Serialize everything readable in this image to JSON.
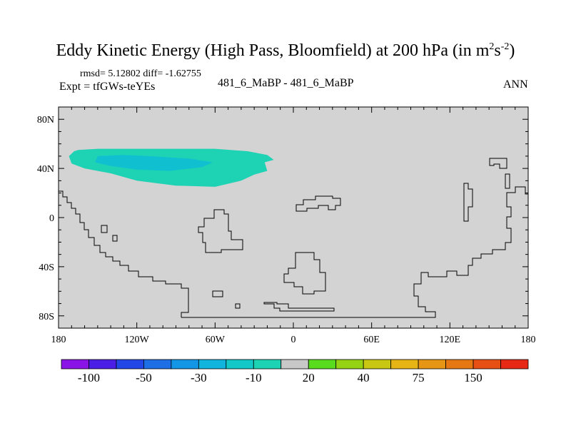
{
  "title": {
    "main": "Eddy Kinetic Energy (High Pass, Bloomfield) at 200 hPa (in m",
    "sup1": "2",
    "mid": "s",
    "sup2": "-2",
    "end": ")"
  },
  "header": {
    "stats": "rmsd= 5.12802 diff= -1.62755",
    "expt": "Expt = tfGWs-teYEs",
    "case": "481_6_MaBP - 481_6_MaBP",
    "season": "ANN"
  },
  "chart_data": {
    "type": "heatmap",
    "projection": "cylindrical-equidistant",
    "background_color": "#d3d3d3",
    "xlim": [
      -180,
      180
    ],
    "ylim": [
      -90,
      90
    ],
    "x_ticks": [
      {
        "value": -180,
        "label": "180"
      },
      {
        "value": -120,
        "label": "120W"
      },
      {
        "value": -60,
        "label": "60W"
      },
      {
        "value": 0,
        "label": "0"
      },
      {
        "value": 60,
        "label": "60E"
      },
      {
        "value": 120,
        "label": "120E"
      },
      {
        "value": 180,
        "label": "180"
      }
    ],
    "y_ticks": [
      {
        "value": 80,
        "label": "80N"
      },
      {
        "value": 40,
        "label": "40N"
      },
      {
        "value": 0,
        "label": "0"
      },
      {
        "value": -40,
        "label": "40S"
      },
      {
        "value": -80,
        "label": "80S"
      }
    ],
    "anomaly_regions": [
      {
        "level": "-10",
        "color": "#1ed2b4",
        "polygon": [
          [
            -165,
            55
          ],
          [
            -150,
            56
          ],
          [
            -120,
            56
          ],
          [
            -90,
            56
          ],
          [
            -60,
            56
          ],
          [
            -35,
            54
          ],
          [
            -20,
            51
          ],
          [
            -15,
            47
          ],
          [
            -22,
            45
          ],
          [
            -20,
            38
          ],
          [
            -30,
            35
          ],
          [
            -40,
            30
          ],
          [
            -60,
            25
          ],
          [
            -90,
            26
          ],
          [
            -120,
            30
          ],
          [
            -140,
            36
          ],
          [
            -160,
            40
          ],
          [
            -170,
            44
          ],
          [
            -172,
            50
          ],
          [
            -168,
            54
          ]
        ]
      },
      {
        "level": "-30",
        "color": "#10c0d0",
        "polygon": [
          [
            -150,
            50
          ],
          [
            -130,
            51
          ],
          [
            -110,
            50
          ],
          [
            -80,
            48
          ],
          [
            -62,
            45
          ],
          [
            -70,
            41
          ],
          [
            -95,
            38
          ],
          [
            -120,
            39
          ],
          [
            -140,
            42
          ],
          [
            -152,
            45
          ]
        ]
      }
    ],
    "colorbar": {
      "colors": [
        "#8a14e6",
        "#4b1ee6",
        "#2346e6",
        "#1e6ee6",
        "#1496e6",
        "#10b4dc",
        "#14c8c8",
        "#1ed2b4",
        "#c8c8c8",
        "#5adc1e",
        "#96d214",
        "#c8c814",
        "#e6b414",
        "#e69614",
        "#e67814",
        "#e65014",
        "#e62814"
      ],
      "labels": [
        {
          "after_box": 1,
          "text": "-100"
        },
        {
          "after_box": 3,
          "text": "-50"
        },
        {
          "after_box": 5,
          "text": "-30"
        },
        {
          "after_box": 7,
          "text": "-10"
        },
        {
          "after_box": 9,
          "text": "20"
        },
        {
          "after_box": 11,
          "text": "40"
        },
        {
          "after_box": 13,
          "text": "75"
        },
        {
          "after_box": 15,
          "text": "150"
        }
      ]
    }
  }
}
